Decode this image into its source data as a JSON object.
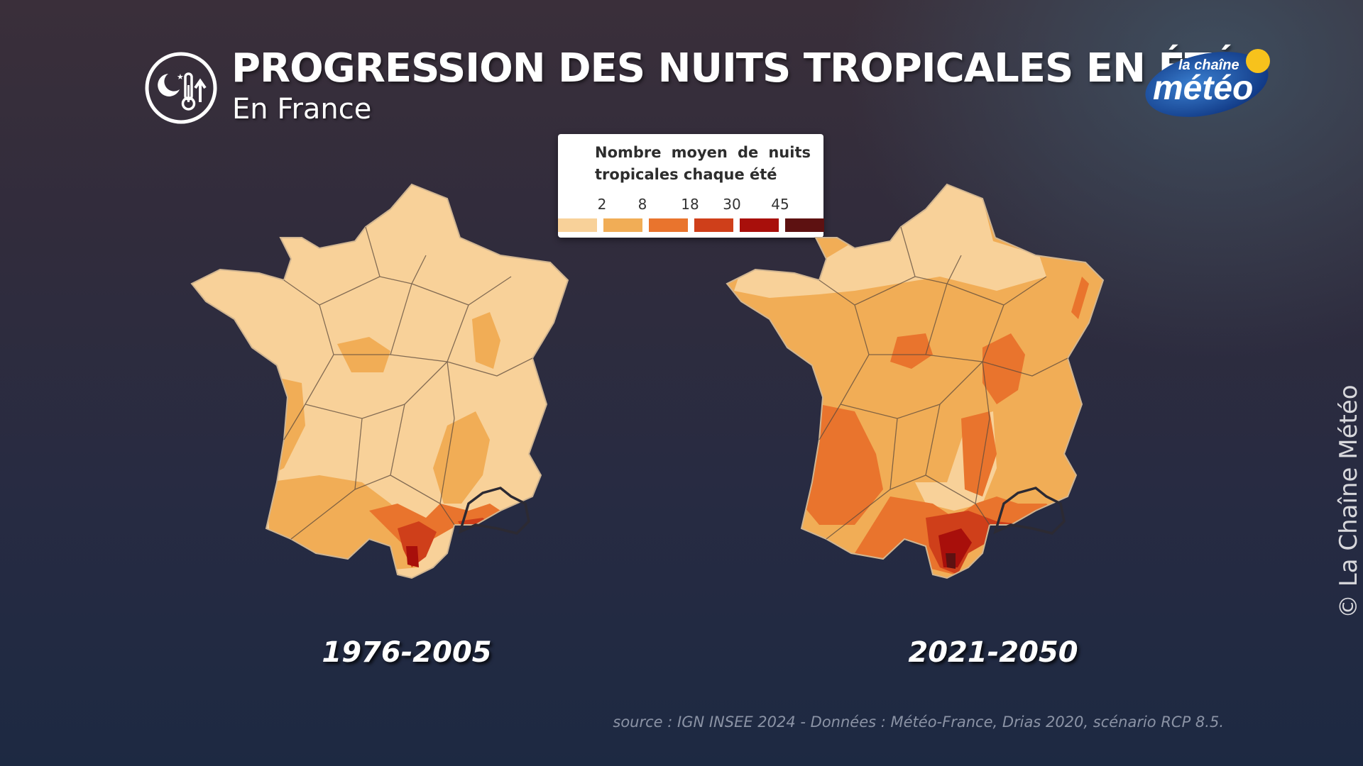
{
  "header": {
    "title": "PROGRESSION DES NUITS TROPICALES EN ÉTÉ",
    "subtitle": "En France",
    "icon": "moon-thermometer-icon"
  },
  "logo": {
    "line1": "la chaîne",
    "line2": "météo"
  },
  "legend": {
    "title": "Nombre moyen de nuits tropicales chaque été",
    "ticks": [
      "2",
      "8",
      "18",
      "30",
      "45"
    ],
    "colors": [
      "#f8d199",
      "#f1ad56",
      "#e9742d",
      "#cf3f1a",
      "#a80f0b",
      "#5d1111"
    ]
  },
  "maps": [
    {
      "period": "1976-2005"
    },
    {
      "period": "2021-2050"
    }
  ],
  "source": "source : IGN INSEE 2024 - Données : Météo-France, Drias 2020, scénario RCP 8.5.",
  "copyright": "© La Chaîne Météo"
}
